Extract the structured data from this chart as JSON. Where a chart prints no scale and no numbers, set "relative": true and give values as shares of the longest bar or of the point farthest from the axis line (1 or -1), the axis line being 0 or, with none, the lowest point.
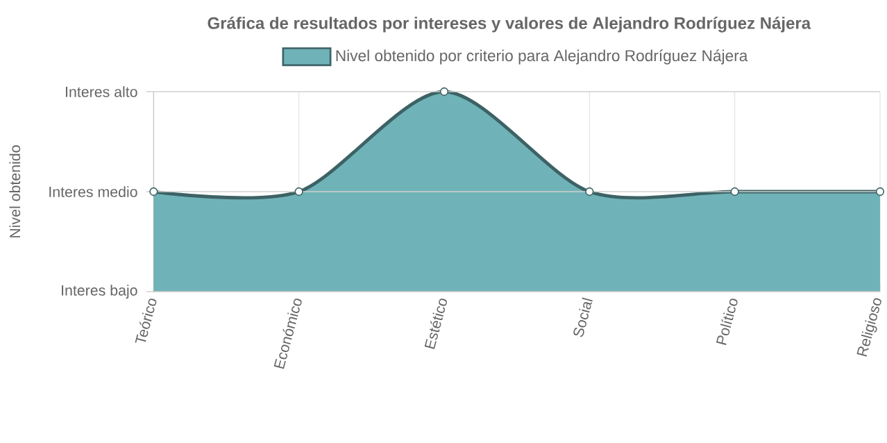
{
  "chart_data": {
    "type": "area",
    "title": "Gráfica de resultados por intereses y valores de Alejandro Rodríguez Nájera",
    "annotations": [
      "Nivel obtenido"
    ],
    "categories": [
      "Teórico",
      "Económico",
      "Estético",
      "Social",
      "Político",
      "Religioso"
    ],
    "series": [
      {
        "name": "Nivel obtenido por criterio para Alejandro Rodríguez Nájera",
        "color": "#6fb3b8",
        "values": [
          0.5,
          0.5,
          1,
          0.5,
          0.5,
          0.5
        ]
      }
    ],
    "relative": true,
    "ref_lines": [
      {
        "axis": "y",
        "value": 0,
        "label": "Interes bajo"
      },
      {
        "axis": "y",
        "value": 0.5,
        "label": "Interes medio"
      },
      {
        "axis": "y",
        "value": 1,
        "label": "Interes alto"
      }
    ],
    "grid": "x",
    "legend": "top",
    "marker": "circle",
    "line_style": "solid"
  }
}
